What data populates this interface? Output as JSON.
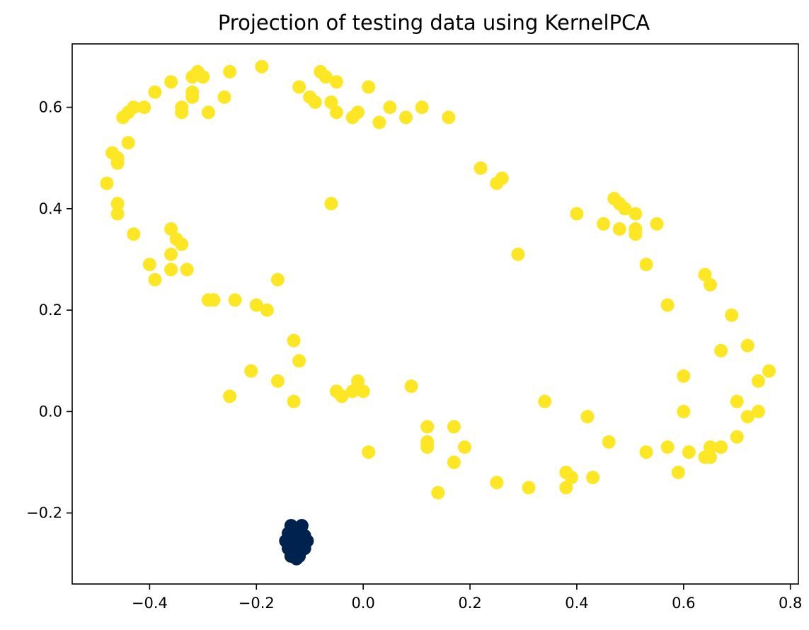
{
  "chart_data": {
    "type": "scatter",
    "title": "Projection of testing data using KernelPCA",
    "xlabel": "",
    "ylabel": "",
    "xlim": [
      -0.545,
      0.815
    ],
    "ylim": [
      -0.34,
      0.725
    ],
    "x_ticks": [
      -0.4,
      -0.2,
      0.0,
      0.2,
      0.4,
      0.6,
      0.8
    ],
    "x_tick_labels": [
      "−0.4",
      "−0.2",
      "0.0",
      "0.2",
      "0.4",
      "0.6",
      "0.8"
    ],
    "y_ticks": [
      -0.2,
      0.0,
      0.2,
      0.4,
      0.6
    ],
    "y_tick_labels": [
      "−0.2",
      "0.0",
      "0.2",
      "0.4",
      "0.6"
    ],
    "grid": false,
    "legend": "none",
    "series": [
      {
        "color": "#fde725",
        "points": [
          [
            -0.19,
            0.68
          ],
          [
            -0.25,
            0.67
          ],
          [
            -0.3,
            0.66
          ],
          [
            -0.32,
            0.66
          ],
          [
            -0.36,
            0.65
          ],
          [
            -0.39,
            0.63
          ],
          [
            -0.43,
            0.6
          ],
          [
            -0.44,
            0.59
          ],
          [
            -0.45,
            0.58
          ],
          [
            -0.41,
            0.6
          ],
          [
            -0.32,
            0.63
          ],
          [
            -0.32,
            0.62
          ],
          [
            -0.34,
            0.6
          ],
          [
            -0.34,
            0.59
          ],
          [
            -0.29,
            0.59
          ],
          [
            -0.26,
            0.62
          ],
          [
            -0.31,
            0.67
          ],
          [
            -0.47,
            0.51
          ],
          [
            -0.46,
            0.5
          ],
          [
            -0.46,
            0.49
          ],
          [
            -0.44,
            0.53
          ],
          [
            -0.48,
            0.45
          ],
          [
            -0.46,
            0.41
          ],
          [
            -0.46,
            0.39
          ],
          [
            -0.43,
            0.35
          ],
          [
            -0.36,
            0.36
          ],
          [
            -0.35,
            0.34
          ],
          [
            -0.34,
            0.33
          ],
          [
            -0.36,
            0.31
          ],
          [
            -0.4,
            0.29
          ],
          [
            -0.33,
            0.28
          ],
          [
            -0.36,
            0.28
          ],
          [
            -0.39,
            0.26
          ],
          [
            -0.29,
            0.22
          ],
          [
            -0.28,
            0.22
          ],
          [
            -0.24,
            0.22
          ],
          [
            -0.2,
            0.21
          ],
          [
            -0.18,
            0.2
          ],
          [
            -0.16,
            0.26
          ],
          [
            -0.08,
            0.67
          ],
          [
            -0.07,
            0.66
          ],
          [
            -0.05,
            0.65
          ],
          [
            -0.12,
            0.64
          ],
          [
            -0.1,
            0.62
          ],
          [
            -0.09,
            0.61
          ],
          [
            -0.06,
            0.61
          ],
          [
            -0.05,
            0.59
          ],
          [
            -0.02,
            0.58
          ],
          [
            -0.01,
            0.59
          ],
          [
            0.01,
            0.64
          ],
          [
            0.03,
            0.57
          ],
          [
            0.05,
            0.6
          ],
          [
            0.08,
            0.58
          ],
          [
            0.11,
            0.6
          ],
          [
            0.16,
            0.58
          ],
          [
            0.22,
            0.48
          ],
          [
            0.25,
            0.45
          ],
          [
            0.26,
            0.46
          ],
          [
            -0.06,
            0.41
          ],
          [
            0.29,
            0.31
          ],
          [
            0.4,
            0.39
          ],
          [
            0.45,
            0.37
          ],
          [
            0.47,
            0.42
          ],
          [
            0.48,
            0.41
          ],
          [
            0.49,
            0.4
          ],
          [
            0.48,
            0.36
          ],
          [
            0.51,
            0.39
          ],
          [
            0.51,
            0.36
          ],
          [
            0.51,
            0.35
          ],
          [
            0.55,
            0.37
          ],
          [
            0.53,
            0.29
          ],
          [
            0.57,
            0.21
          ],
          [
            0.64,
            0.27
          ],
          [
            0.65,
            0.25
          ],
          [
            0.69,
            0.19
          ],
          [
            0.67,
            0.12
          ],
          [
            0.72,
            0.13
          ],
          [
            0.76,
            0.08
          ],
          [
            0.74,
            0.06
          ],
          [
            0.6,
            0.07
          ],
          [
            0.6,
            0.0
          ],
          [
            0.7,
            0.02
          ],
          [
            0.72,
            -0.01
          ],
          [
            0.74,
            0.0
          ],
          [
            0.7,
            -0.05
          ],
          [
            -0.25,
            0.03
          ],
          [
            -0.21,
            0.08
          ],
          [
            -0.16,
            0.06
          ],
          [
            -0.13,
            0.14
          ],
          [
            -0.12,
            0.1
          ],
          [
            -0.13,
            0.02
          ],
          [
            -0.05,
            0.04
          ],
          [
            -0.04,
            0.03
          ],
          [
            -0.02,
            0.04
          ],
          [
            -0.01,
            0.06
          ],
          [
            0.0,
            0.04
          ],
          [
            0.01,
            -0.08
          ],
          [
            0.09,
            0.05
          ],
          [
            0.12,
            -0.03
          ],
          [
            0.12,
            -0.06
          ],
          [
            0.12,
            -0.07
          ],
          [
            0.17,
            -0.03
          ],
          [
            0.19,
            -0.07
          ],
          [
            0.17,
            -0.1
          ],
          [
            0.14,
            -0.16
          ],
          [
            0.25,
            -0.14
          ],
          [
            0.31,
            -0.15
          ],
          [
            0.34,
            0.02
          ],
          [
            0.38,
            -0.12
          ],
          [
            0.39,
            -0.13
          ],
          [
            0.38,
            -0.15
          ],
          [
            0.42,
            -0.01
          ],
          [
            0.43,
            -0.13
          ],
          [
            0.46,
            -0.06
          ],
          [
            0.53,
            -0.08
          ],
          [
            0.57,
            -0.07
          ],
          [
            0.59,
            -0.12
          ],
          [
            0.61,
            -0.08
          ],
          [
            0.64,
            -0.09
          ],
          [
            0.65,
            -0.09
          ],
          [
            0.65,
            -0.07
          ],
          [
            0.67,
            -0.07
          ]
        ]
      },
      {
        "color": "#00224e",
        "points": [
          [
            -0.135,
            -0.225
          ],
          [
            -0.125,
            -0.23
          ],
          [
            -0.115,
            -0.225
          ],
          [
            -0.14,
            -0.24
          ],
          [
            -0.13,
            -0.245
          ],
          [
            -0.12,
            -0.24
          ],
          [
            -0.11,
            -0.245
          ],
          [
            -0.145,
            -0.255
          ],
          [
            -0.135,
            -0.26
          ],
          [
            -0.125,
            -0.255
          ],
          [
            -0.115,
            -0.26
          ],
          [
            -0.105,
            -0.255
          ],
          [
            -0.14,
            -0.27
          ],
          [
            -0.13,
            -0.275
          ],
          [
            -0.12,
            -0.27
          ],
          [
            -0.11,
            -0.27
          ],
          [
            -0.135,
            -0.285
          ],
          [
            -0.125,
            -0.29
          ],
          [
            -0.12,
            -0.285
          ],
          [
            -0.13,
            -0.28
          ]
        ]
      }
    ]
  }
}
